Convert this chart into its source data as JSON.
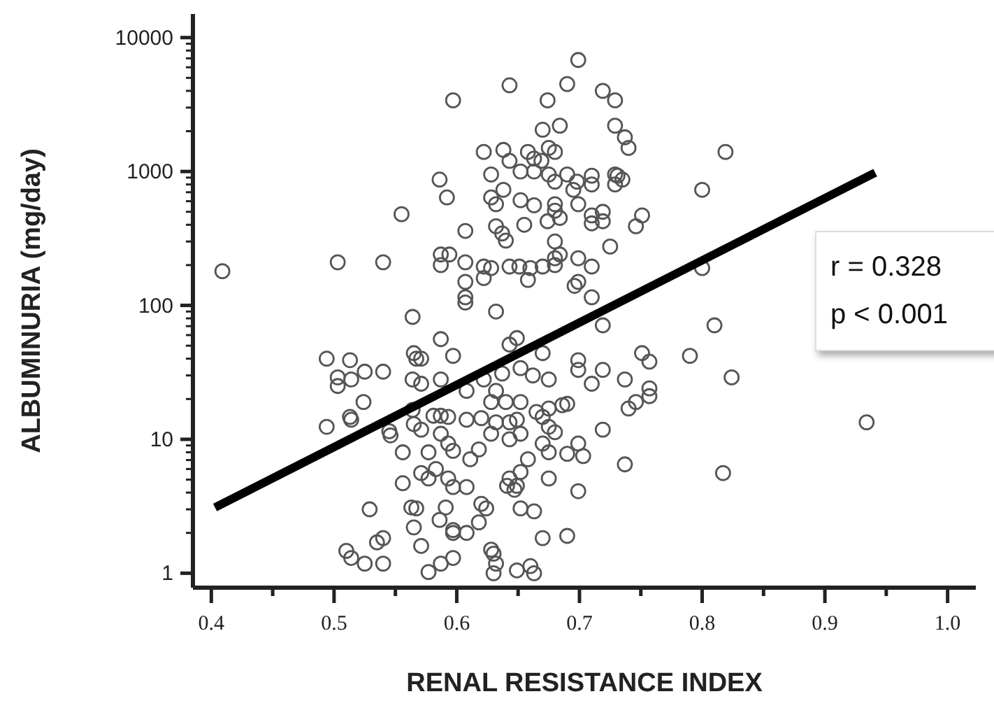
{
  "chart_data": {
    "type": "scatter",
    "xlabel": "RENAL RESISTANCE INDEX",
    "ylabel": "ALBUMINURIA (mg/day)",
    "log": "y",
    "grid": false,
    "legend": false,
    "xlim": [
      0.385,
      1.023
    ],
    "ylim": [
      0.78,
      15000
    ],
    "xticks": [
      {
        "value": 0.4,
        "label": "0.4"
      },
      {
        "value": 0.45,
        "label": null
      },
      {
        "value": 0.5,
        "label": "0.5"
      },
      {
        "value": 0.55,
        "label": null
      },
      {
        "value": 0.6,
        "label": "0.6"
      },
      {
        "value": 0.65,
        "label": null
      },
      {
        "value": 0.7,
        "label": "0.7"
      },
      {
        "value": 0.75,
        "label": null
      },
      {
        "value": 0.8,
        "label": "0.8"
      },
      {
        "value": 0.85,
        "label": null
      },
      {
        "value": 0.9,
        "label": "0.9"
      },
      {
        "value": 0.95,
        "label": null
      },
      {
        "value": 1,
        "label": "1.0"
      }
    ],
    "yticks": [
      1,
      {
        "value": 2,
        "label": null
      },
      {
        "value": 3,
        "label": null
      },
      {
        "value": 4,
        "label": null
      },
      {
        "value": 5,
        "label": null
      },
      {
        "value": 6,
        "label": null
      },
      {
        "value": 7,
        "label": null
      },
      {
        "value": 8,
        "label": null
      },
      {
        "value": 9,
        "label": null
      },
      10,
      {
        "value": 20,
        "label": null
      },
      {
        "value": 30,
        "label": null
      },
      {
        "value": 40,
        "label": null
      },
      {
        "value": 50,
        "label": null
      },
      {
        "value": 60,
        "label": null
      },
      {
        "value": 70,
        "label": null
      },
      {
        "value": 80,
        "label": null
      },
      {
        "value": 90,
        "label": null
      },
      100,
      {
        "value": 200,
        "label": null
      },
      {
        "value": 300,
        "label": null
      },
      {
        "value": 400,
        "label": null
      },
      {
        "value": 500,
        "label": null
      },
      {
        "value": 600,
        "label": null
      },
      {
        "value": 700,
        "label": null
      },
      {
        "value": 800,
        "label": null
      },
      {
        "value": 900,
        "label": null
      },
      1000,
      {
        "value": 2000,
        "label": null
      },
      {
        "value": 3000,
        "label": null
      },
      {
        "value": 4000,
        "label": null
      },
      {
        "value": 5000,
        "label": null
      },
      {
        "value": 6000,
        "label": null
      },
      {
        "value": 7000,
        "label": null
      },
      {
        "value": 8000,
        "label": null
      },
      {
        "value": 9000,
        "label": null
      },
      10000
    ],
    "annotations": [
      "r = 0.328",
      "p < 0.001"
    ],
    "series": [
      {
        "type": "scatter",
        "color": "#555555",
        "marker": "circle",
        "x": [
          0.409,
          0.503,
          0.54,
          0.555,
          0.597,
          0.586,
          0.592,
          0.587,
          0.587,
          0.594,
          0.494,
          0.513,
          0.503,
          0.503,
          0.514,
          0.525,
          0.54,
          0.524,
          0.494,
          0.514,
          0.545,
          0.529,
          0.535,
          0.54,
          0.51,
          0.514,
          0.525,
          0.54,
          0.564,
          0.587,
          0.546,
          0.556,
          0.556,
          0.563,
          0.567,
          0.565,
          0.571,
          0.577,
          0.587,
          0.597,
          0.571,
          0.577,
          0.583,
          0.593,
          0.597,
          0.591,
          0.586,
          0.597,
          0.565,
          0.571,
          0.577,
          0.564,
          0.567,
          0.565,
          0.571,
          0.564,
          0.571,
          0.587,
          0.597,
          0.581,
          0.587,
          0.593,
          0.587,
          0.593,
          0.597,
          0.513,
          0.699,
          0.643,
          0.69,
          0.674,
          0.719,
          0.729,
          0.684,
          0.67,
          0.729,
          0.622,
          0.638,
          0.643,
          0.658,
          0.675,
          0.68,
          0.669,
          0.663,
          0.628,
          0.652,
          0.663,
          0.675,
          0.69,
          0.68,
          0.698,
          0.71,
          0.71,
          0.729,
          0.729,
          0.695,
          0.638,
          0.628,
          0.632,
          0.652,
          0.663,
          0.68,
          0.68,
          0.699,
          0.71,
          0.719,
          0.71,
          0.719,
          0.684,
          0.674,
          0.632,
          0.637,
          0.64,
          0.655,
          0.607,
          0.68,
          0.725,
          0.607,
          0.622,
          0.628,
          0.622,
          0.643,
          0.651,
          0.66,
          0.67,
          0.68,
          0.684,
          0.68,
          0.699,
          0.71,
          0.658,
          0.607,
          0.696,
          0.699,
          0.71,
          0.607,
          0.607,
          0.632,
          0.719,
          0.649,
          0.643,
          0.67,
          0.699,
          0.699,
          0.719,
          0.71,
          0.652,
          0.662,
          0.675,
          0.637,
          0.622,
          0.608,
          0.632,
          0.64,
          0.652,
          0.628,
          0.675,
          0.686,
          0.69,
          0.665,
          0.67,
          0.608,
          0.62,
          0.632,
          0.643,
          0.649,
          0.628,
          0.643,
          0.652,
          0.675,
          0.68,
          0.719,
          0.67,
          0.675,
          0.69,
          0.699,
          0.703,
          0.618,
          0.611,
          0.658,
          0.652,
          0.643,
          0.649,
          0.641,
          0.647,
          0.675,
          0.699,
          0.608,
          0.62,
          0.624,
          0.618,
          0.652,
          0.663,
          0.597,
          0.608,
          0.67,
          0.69,
          0.628,
          0.63,
          0.632,
          0.63,
          0.649,
          0.66,
          0.663,
          0.737,
          0.74,
          0.731,
          0.735,
          0.819,
          0.8,
          0.751,
          0.746,
          0.8,
          0.81,
          0.751,
          0.757,
          0.79,
          0.824,
          0.737,
          0.757,
          0.757,
          0.746,
          0.74,
          0.934,
          0.817,
          0.737
        ],
        "values": [
          180,
          210,
          210,
          480,
          3400,
          870,
          640,
          240,
          200,
          240,
          40,
          39,
          29,
          25,
          28,
          32,
          32,
          19,
          12.4,
          14,
          11.5,
          3,
          1.7,
          1.83,
          1.47,
          1.3,
          1.18,
          1.18,
          82,
          56,
          10.7,
          8,
          4.7,
          3.1,
          3.05,
          2.2,
          1.6,
          1.02,
          1.18,
          1.3,
          5.6,
          5.1,
          6,
          5.1,
          4.4,
          3.1,
          2.5,
          2,
          13,
          11.8,
          8,
          16.6,
          40,
          44,
          40,
          28,
          26,
          28,
          42,
          15,
          15,
          14.7,
          11,
          9.3,
          8.2,
          14.7,
          6800,
          4400,
          4500,
          3400,
          4000,
          3400,
          2200,
          2050,
          2200,
          1400,
          1450,
          1200,
          1400,
          1500,
          1400,
          1200,
          1250,
          950,
          1000,
          1000,
          950,
          950,
          840,
          840,
          930,
          800,
          950,
          800,
          730,
          730,
          640,
          570,
          610,
          560,
          570,
          510,
          570,
          470,
          500,
          410,
          425,
          450,
          425,
          390,
          345,
          305,
          400,
          360,
          300,
          275,
          210,
          195,
          190,
          160,
          195,
          195,
          190,
          195,
          225,
          240,
          200,
          225,
          195,
          155,
          150,
          140,
          150,
          115,
          115,
          105,
          90,
          71,
          57,
          51,
          44,
          39,
          33,
          33,
          26,
          34,
          30,
          28,
          31,
          28,
          23,
          23,
          19,
          19,
          19,
          17,
          18,
          18.4,
          16,
          14.7,
          14,
          14.4,
          13.4,
          13.4,
          14,
          11,
          10,
          11,
          12.4,
          11.3,
          11.8,
          9.3,
          8,
          7.8,
          9.3,
          7.5,
          8.4,
          7.1,
          7.1,
          5.7,
          5.1,
          4.5,
          4.5,
          4.2,
          5.1,
          4.1,
          4.4,
          3.3,
          3.05,
          2.4,
          3.05,
          2.9,
          2.1,
          2,
          1.83,
          1.9,
          1.5,
          1.4,
          1.18,
          1,
          1.05,
          1.13,
          1,
          1800,
          1500,
          930,
          870,
          1400,
          730,
          470,
          390,
          190,
          71,
          44,
          38,
          42,
          29,
          28,
          24,
          21,
          19,
          17,
          13.4,
          5.6,
          6.5
        ]
      },
      {
        "type": "line",
        "color": "#000000",
        "line_style": "solid",
        "marker": "none",
        "x": [
          0.403,
          0.941
        ],
        "values": [
          3.1,
          980
        ]
      }
    ]
  }
}
